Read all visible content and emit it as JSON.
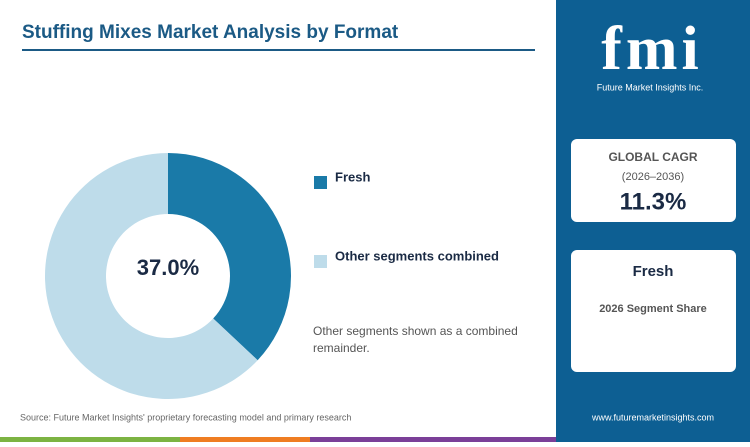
{
  "chart_data": {
    "type": "pie",
    "title": "Stuffing Mixes Market Analysis by Format",
    "categories": [
      "Fresh",
      "Other segments combined"
    ],
    "values": [
      37.0,
      63.0
    ],
    "value_labels": [
      "37.0%",
      null
    ],
    "colors": [
      "#1a7aa8",
      "#bedcea"
    ],
    "donut": true
  },
  "note": "Other segments shown as a combined remainder.",
  "source": "Source: Future Market Insights' proprietary forecasting model and primary research",
  "sidebar": {
    "logo": "fmi",
    "logo_caption": "Future Market Insights Inc.",
    "cagr_label": "GLOBAL CAGR",
    "cagr_period": "(2026–2036)",
    "cagr_value": "11.3%",
    "segment": "Fresh",
    "segment_caption": "2026 Segment Share",
    "url": "www.futuremarketinsights.com"
  }
}
